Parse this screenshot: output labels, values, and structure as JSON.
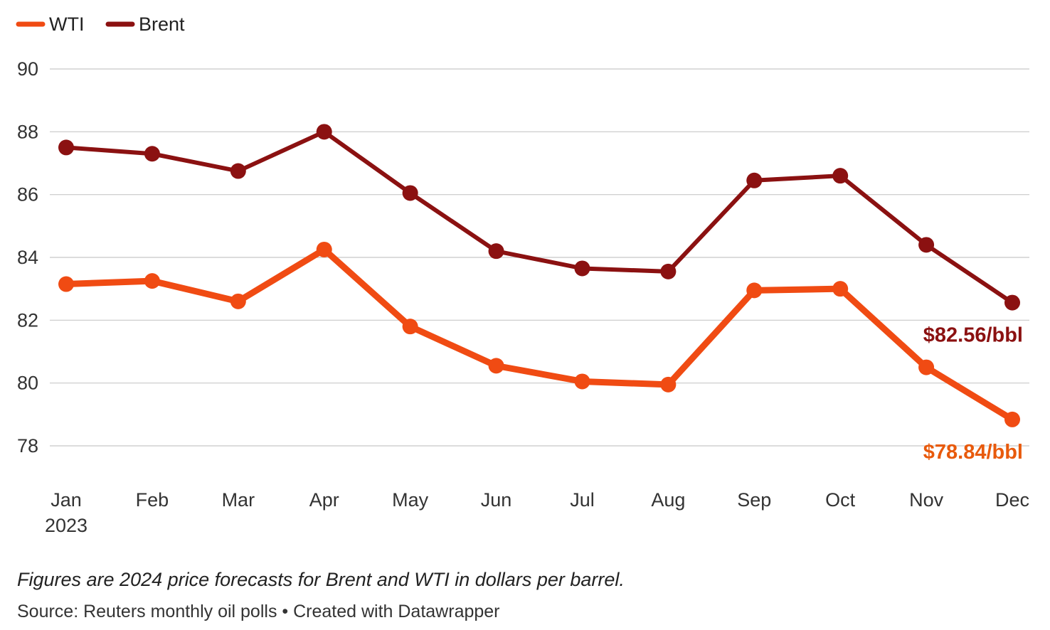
{
  "chart_data": {
    "type": "line",
    "categories": [
      "Jan",
      "Feb",
      "Mar",
      "Apr",
      "May",
      "Jun",
      "Jul",
      "Aug",
      "Sep",
      "Oct",
      "Nov",
      "Dec"
    ],
    "year_label": "2023",
    "series": [
      {
        "name": "WTI",
        "color": "#f04b13",
        "values": [
          83.15,
          83.25,
          82.6,
          84.25,
          81.8,
          80.55,
          80.05,
          79.95,
          82.95,
          83.0,
          80.5,
          78.84
        ],
        "end_label": "$78.84/bbl",
        "end_label_color": "#e85a0c"
      },
      {
        "name": "Brent",
        "color": "#8b1111",
        "values": [
          87.5,
          87.3,
          86.75,
          88.0,
          86.05,
          84.2,
          83.65,
          83.55,
          86.45,
          86.6,
          84.4,
          82.56
        ],
        "end_label": "$82.56/bbl",
        "end_label_color": "#8b1111"
      }
    ],
    "ylim": [
      78,
      90
    ],
    "yticks": [
      "78",
      "80",
      "82",
      "84",
      "86",
      "88",
      "90"
    ],
    "grid": true,
    "legend_position": "top-left",
    "note": "Figures are 2024 price forecasts for Brent and WTI in dollars per barrel.",
    "source": "Source: Reuters monthly oil polls • Created with Datawrapper"
  }
}
